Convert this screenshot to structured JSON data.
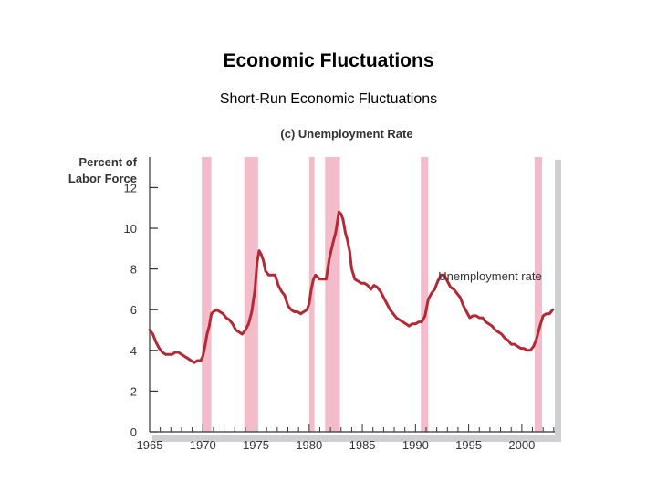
{
  "slide": {
    "title": "Economic Fluctuations",
    "subtitle": "Short-Run Economic Fluctuations"
  },
  "chart_data": {
    "type": "line",
    "title": "(c) Unemployment Rate",
    "ylabel_lines": [
      "Percent of",
      "Labor Force"
    ],
    "xlabel": "",
    "xlim": [
      1965,
      2003.1
    ],
    "ylim": [
      0,
      13.5
    ],
    "x_ticks": [
      1965,
      1970,
      1975,
      1980,
      1985,
      1990,
      1995,
      2000
    ],
    "y_ticks": [
      0,
      2,
      4,
      6,
      8,
      10,
      12
    ],
    "grid": false,
    "recessions": [
      [
        1969.9,
        1970.8
      ],
      [
        1973.9,
        1975.2
      ],
      [
        1980.0,
        1980.5
      ],
      [
        1981.5,
        1982.9
      ],
      [
        1990.5,
        1991.2
      ],
      [
        2001.2,
        2001.9
      ]
    ],
    "series": [
      {
        "name": "Unemployment rate",
        "color": "#b22a35",
        "x": [
          1965.0,
          1965.3,
          1965.6,
          1965.9,
          1966.2,
          1966.5,
          1966.8,
          1967.1,
          1967.4,
          1967.7,
          1968.0,
          1968.3,
          1968.6,
          1968.9,
          1969.2,
          1969.5,
          1969.8,
          1970.0,
          1970.2,
          1970.4,
          1970.6,
          1970.8,
          1971.0,
          1971.3,
          1971.6,
          1971.9,
          1972.2,
          1972.5,
          1972.8,
          1973.1,
          1973.4,
          1973.7,
          1974.0,
          1974.3,
          1974.6,
          1974.9,
          1975.1,
          1975.3,
          1975.5,
          1975.7,
          1975.9,
          1976.2,
          1976.5,
          1976.8,
          1977.1,
          1977.4,
          1977.7,
          1978.0,
          1978.3,
          1978.6,
          1978.9,
          1979.2,
          1979.5,
          1979.8,
          1980.0,
          1980.2,
          1980.4,
          1980.6,
          1980.8,
          1981.0,
          1981.3,
          1981.6,
          1981.9,
          1982.2,
          1982.5,
          1982.8,
          1983.0,
          1983.2,
          1983.4,
          1983.6,
          1983.8,
          1984.0,
          1984.3,
          1984.6,
          1984.9,
          1985.2,
          1985.5,
          1985.8,
          1986.1,
          1986.4,
          1986.7,
          1987.0,
          1987.3,
          1987.6,
          1987.9,
          1988.2,
          1988.5,
          1988.8,
          1989.1,
          1989.4,
          1989.7,
          1990.0,
          1990.3,
          1990.6,
          1990.9,
          1991.2,
          1991.5,
          1991.8,
          1992.1,
          1992.4,
          1992.7,
          1993.0,
          1993.3,
          1993.6,
          1993.9,
          1994.2,
          1994.5,
          1994.8,
          1995.1,
          1995.4,
          1995.7,
          1996.0,
          1996.3,
          1996.6,
          1996.9,
          1997.2,
          1997.5,
          1997.8,
          1998.1,
          1998.4,
          1998.7,
          1999.0,
          1999.3,
          1999.6,
          1999.9,
          2000.2,
          2000.5,
          2000.8,
          2001.1,
          2001.4,
          2001.7,
          2002.0,
          2002.3,
          2002.6,
          2002.9
        ],
        "values": [
          5.0,
          4.8,
          4.4,
          4.1,
          3.9,
          3.8,
          3.8,
          3.8,
          3.9,
          3.9,
          3.8,
          3.7,
          3.6,
          3.5,
          3.4,
          3.5,
          3.5,
          3.7,
          4.2,
          4.8,
          5.2,
          5.8,
          5.9,
          6.0,
          5.9,
          5.8,
          5.6,
          5.5,
          5.3,
          5.0,
          4.9,
          4.8,
          5.0,
          5.3,
          5.9,
          7.0,
          8.3,
          8.9,
          8.7,
          8.4,
          7.9,
          7.7,
          7.7,
          7.7,
          7.2,
          6.9,
          6.7,
          6.2,
          6.0,
          5.9,
          5.9,
          5.8,
          5.9,
          6.0,
          6.3,
          7.0,
          7.5,
          7.7,
          7.6,
          7.5,
          7.5,
          7.5,
          8.5,
          9.2,
          9.8,
          10.8,
          10.7,
          10.4,
          9.8,
          9.4,
          8.9,
          8.0,
          7.5,
          7.4,
          7.3,
          7.3,
          7.2,
          7.0,
          7.2,
          7.1,
          6.9,
          6.6,
          6.3,
          6.0,
          5.8,
          5.6,
          5.5,
          5.4,
          5.3,
          5.2,
          5.3,
          5.3,
          5.4,
          5.4,
          5.7,
          6.5,
          6.8,
          7.0,
          7.4,
          7.7,
          7.7,
          7.4,
          7.1,
          7.0,
          6.8,
          6.6,
          6.2,
          5.9,
          5.6,
          5.7,
          5.7,
          5.6,
          5.6,
          5.4,
          5.3,
          5.2,
          5.0,
          4.9,
          4.8,
          4.6,
          4.5,
          4.3,
          4.3,
          4.2,
          4.1,
          4.1,
          4.0,
          4.0,
          4.2,
          4.6,
          5.2,
          5.7,
          5.8,
          5.8,
          6.0
        ]
      }
    ]
  }
}
